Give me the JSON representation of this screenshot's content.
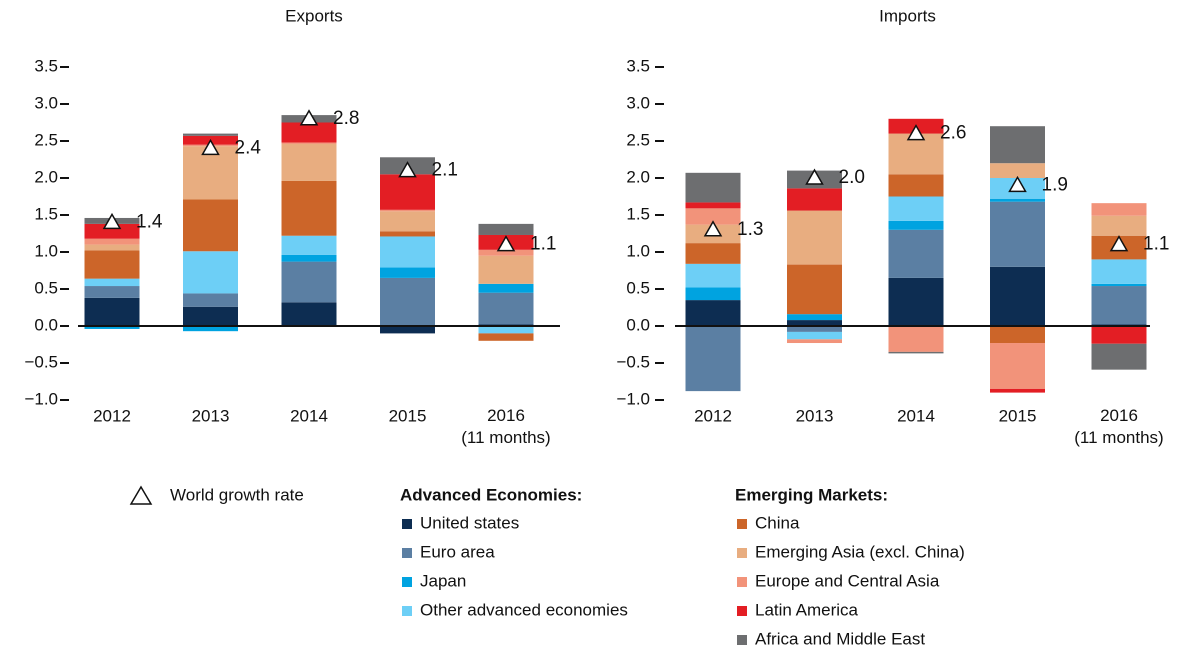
{
  "chart_data": [
    {
      "type": "bar",
      "stacked": true,
      "title": "Exports",
      "categories": [
        "2012",
        "2013",
        "2014",
        "2015",
        "2016\n(11 months)"
      ],
      "ylim": [
        -1,
        3.5
      ],
      "yticks": [
        {
          "value": -1,
          "label": "−1.0"
        },
        {
          "value": -0.5,
          "label": "−0.5"
        },
        {
          "value": 0,
          "label": "0.0"
        },
        0.5,
        {
          "value": 1,
          "label": "1.0"
        },
        1.5,
        {
          "value": 2,
          "label": "2.0"
        },
        2.5,
        {
          "value": 3,
          "label": "3.0"
        },
        3.5
      ],
      "series": [
        {
          "values": [
            0.38,
            0.26,
            0.32,
            -0.1,
            0.02
          ]
        },
        {
          "values": [
            0.16,
            0.18,
            0.55,
            0.65,
            0.43
          ]
        },
        {
          "values": [
            -0.04,
            -0.07,
            0.09,
            0.14,
            0.12
          ]
        },
        {
          "values": [
            0.1,
            0.57,
            0.26,
            0.42,
            -0.1
          ]
        },
        {
          "values": [
            0.38,
            0.7,
            0.74,
            0.07,
            -0.1
          ]
        },
        {
          "values": [
            0.08,
            0.72,
            0.5,
            0.27,
            0.38
          ]
        },
        {
          "values": [
            0.08,
            0.02,
            0.02,
            0.02,
            0.08
          ]
        },
        {
          "values": [
            0.2,
            0.12,
            0.27,
            0.48,
            0.2
          ]
        },
        {
          "values": [
            0.08,
            0.03,
            0.1,
            0.23,
            0.15
          ]
        }
      ],
      "growth": {
        "values": [
          1.4,
          2.4,
          2.8,
          2.1,
          1.1
        ],
        "value_labels": [
          "1.4",
          "2.4",
          "2.8",
          "2.1",
          "1.1"
        ]
      }
    },
    {
      "type": "bar",
      "stacked": true,
      "title": "Imports",
      "categories": [
        "2012",
        "2013",
        "2014",
        "2015",
        "2016\n(11 months)"
      ],
      "ylim": [
        -1,
        3.5
      ],
      "yticks": [
        {
          "value": -1,
          "label": "−1.0"
        },
        {
          "value": -0.5,
          "label": "−0.5"
        },
        {
          "value": 0,
          "label": "0.0"
        },
        0.5,
        {
          "value": 1,
          "label": "1.0"
        },
        1.5,
        {
          "value": 2,
          "label": "2.0"
        },
        2.5,
        {
          "value": 3,
          "label": "3.0"
        },
        3.5
      ],
      "series": [
        {
          "values": [
            0.35,
            0.08,
            0.65,
            0.8,
            0.02
          ]
        },
        {
          "values": [
            -0.88,
            -0.08,
            0.65,
            0.88,
            0.52
          ]
        },
        {
          "values": [
            0.17,
            0.08,
            0.12,
            0.04,
            0.03
          ]
        },
        {
          "values": [
            0.32,
            -0.1,
            0.33,
            0.28,
            0.33
          ]
        },
        {
          "values": [
            0.28,
            0.67,
            0.3,
            -0.23,
            0.32
          ]
        },
        {
          "values": [
            0.25,
            0.73,
            0.55,
            0.2,
            0.27
          ]
        },
        {
          "values": [
            0.22,
            -0.05,
            -0.35,
            -0.62,
            0.17
          ]
        },
        {
          "values": [
            0.08,
            0.3,
            0.2,
            -0.05,
            -0.24
          ]
        },
        {
          "values": [
            0.4,
            0.24,
            -0.02,
            0.5,
            -0.35
          ]
        }
      ],
      "growth": {
        "values": [
          1.3,
          2.0,
          2.6,
          1.9,
          1.1
        ],
        "value_labels": [
          "1.3",
          "2.0",
          "2.6",
          "1.9",
          "1.1"
        ]
      }
    }
  ],
  "legend": {
    "marker_label": "World growth rate",
    "groups": [
      {
        "title": "Advanced Economies:",
        "series": [
          {
            "name": "United states",
            "color": "#0d2d52"
          },
          {
            "name": "Euro area",
            "color": "#5b7fa3"
          },
          {
            "name": "Japan",
            "color": "#00a3e0"
          },
          {
            "name": "Other advanced economies",
            "color": "#6dcff6"
          }
        ]
      },
      {
        "title": "Emerging Markets:",
        "series": [
          {
            "name": "China",
            "color": "#cc6529"
          },
          {
            "name": "Emerging Asia (excl. China)",
            "color": "#e8ad80"
          },
          {
            "name": "Europe and Central Asia",
            "color": "#f2937a"
          },
          {
            "name": "Latin America",
            "color": "#e31e24"
          },
          {
            "name": "Africa and Middle East",
            "color": "#6d6e70"
          }
        ]
      }
    ]
  }
}
